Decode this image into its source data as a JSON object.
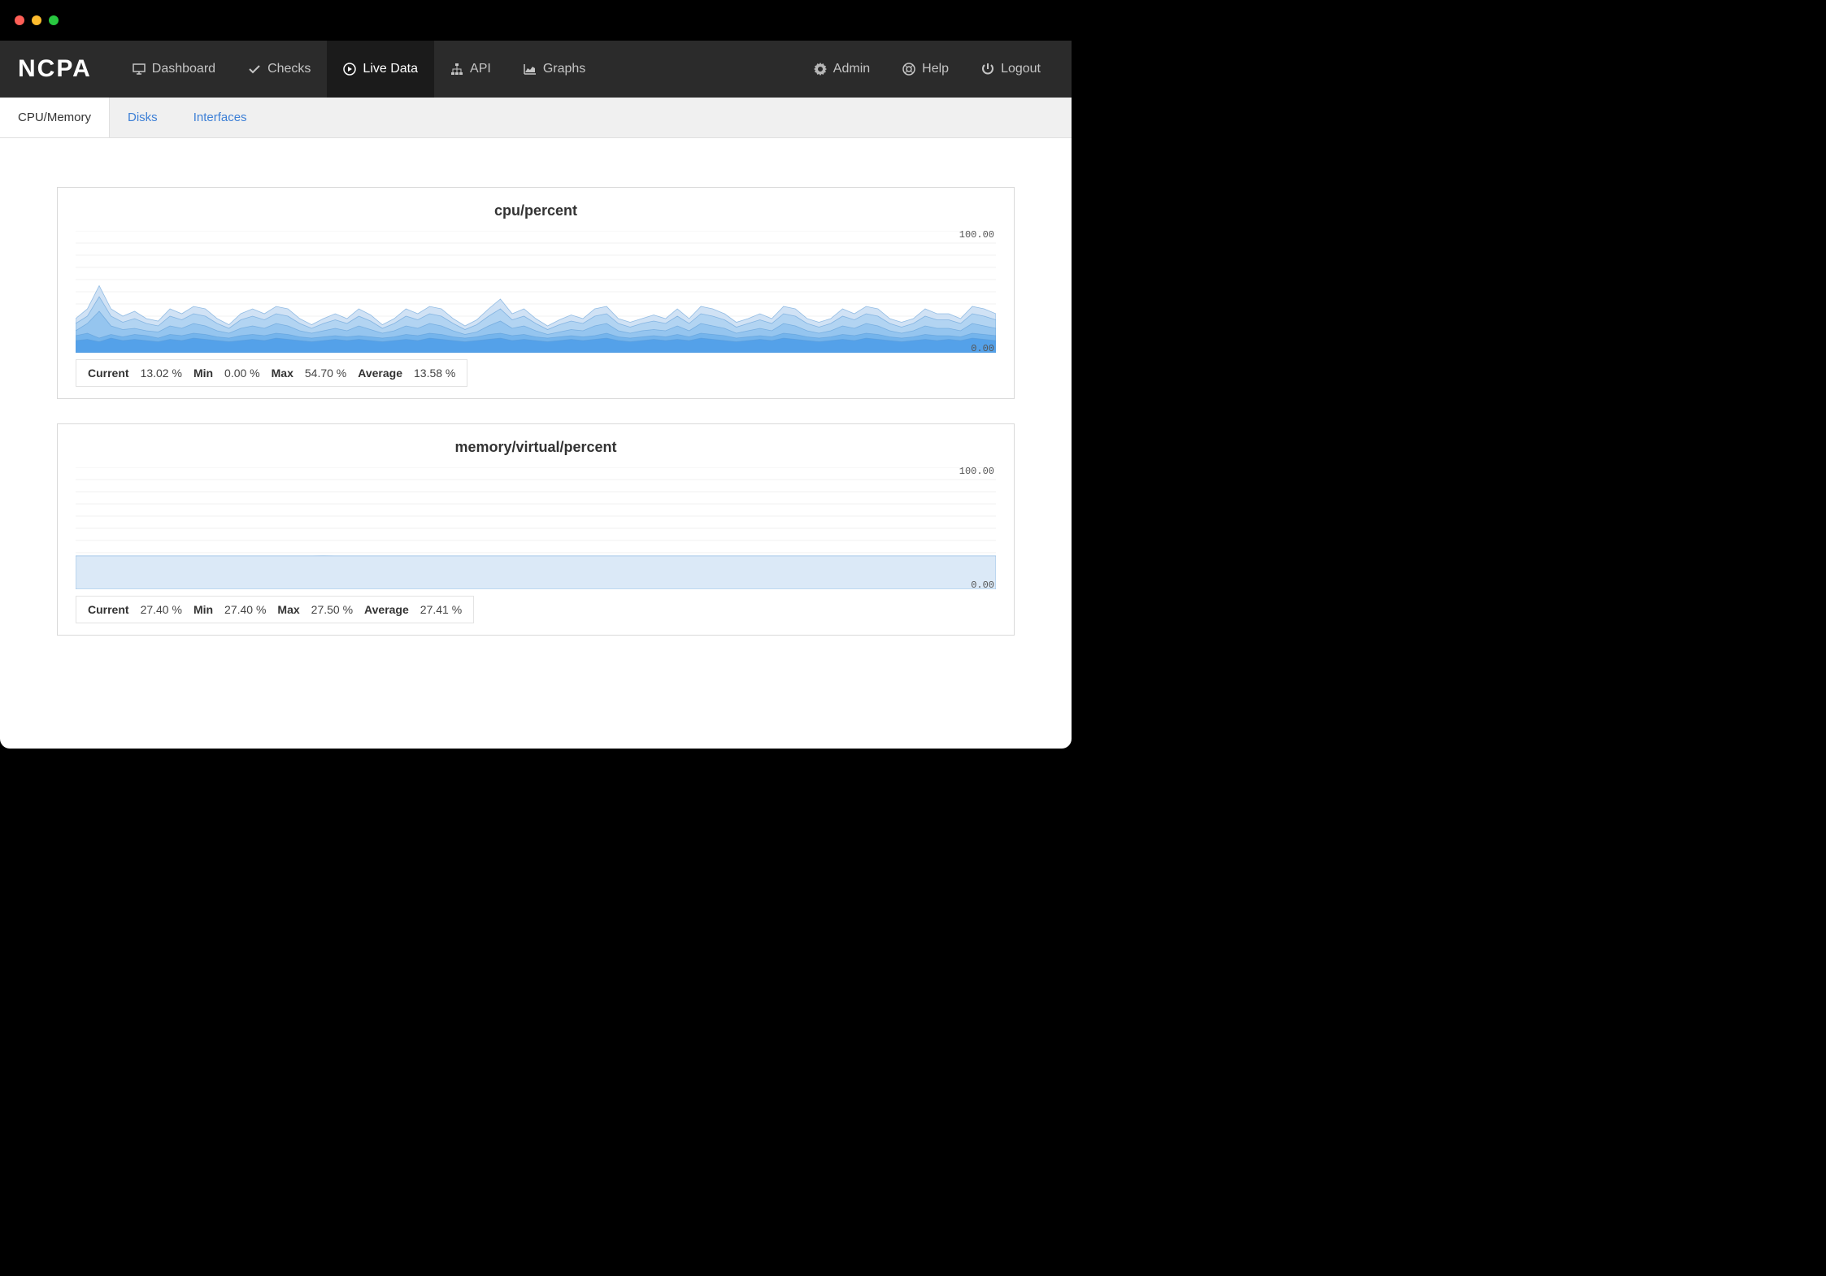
{
  "brand": "NCPA",
  "nav": {
    "items": [
      {
        "icon": "monitor",
        "label": "Dashboard",
        "active": false
      },
      {
        "icon": "check",
        "label": "Checks",
        "active": false
      },
      {
        "icon": "play",
        "label": "Live Data",
        "active": true
      },
      {
        "icon": "sitemap",
        "label": "API",
        "active": false
      },
      {
        "icon": "area-chart",
        "label": "Graphs",
        "active": false
      }
    ],
    "right_items": [
      {
        "icon": "gear",
        "label": "Admin"
      },
      {
        "icon": "life-ring",
        "label": "Help"
      },
      {
        "icon": "power",
        "label": "Logout"
      }
    ]
  },
  "tabs": [
    {
      "label": "CPU/Memory",
      "active": true
    },
    {
      "label": "Disks",
      "active": false
    },
    {
      "label": "Interfaces",
      "active": false
    }
  ],
  "charts": [
    {
      "id": "cpu",
      "type": "area",
      "title": "cpu/percent",
      "ylim": [
        0,
        100
      ],
      "ytick_top": "100.00",
      "ytick_bottom": "0.00",
      "background_color": "#ffffff",
      "grid_color": "#f0f0f0",
      "stroke_color": "#5b9bd5",
      "fill_colors": [
        "#c8ddf3",
        "#add1f1",
        "#8fc2ee",
        "#6eb0eb",
        "#4f9de9",
        "#3a8de4"
      ],
      "fill_opacity": 0.85,
      "series": [
        [
          10,
          11,
          9,
          12,
          10,
          11,
          10,
          9,
          11,
          10,
          12,
          11,
          10,
          9,
          10,
          11,
          10,
          12,
          11,
          10,
          9,
          10,
          11,
          10,
          11,
          10,
          9,
          10,
          11,
          10,
          12,
          11,
          10,
          9,
          10,
          11,
          12,
          10,
          11,
          10,
          9,
          10,
          11,
          10,
          11,
          12,
          10,
          9,
          10,
          11,
          10,
          11,
          10,
          12,
          11,
          10,
          9,
          10,
          11,
          10,
          12,
          11,
          10,
          9,
          10,
          11,
          10,
          12,
          11,
          10,
          9,
          10,
          11,
          10,
          11,
          10,
          12,
          11,
          10
        ],
        [
          14,
          16,
          12,
          15,
          13,
          15,
          14,
          12,
          15,
          14,
          16,
          15,
          13,
          12,
          14,
          15,
          14,
          16,
          15,
          13,
          12,
          13,
          14,
          13,
          14,
          13,
          12,
          13,
          15,
          14,
          16,
          15,
          13,
          12,
          13,
          15,
          16,
          14,
          15,
          13,
          12,
          13,
          14,
          13,
          14,
          16,
          13,
          12,
          13,
          14,
          13,
          15,
          13,
          16,
          15,
          14,
          12,
          13,
          14,
          13,
          16,
          15,
          13,
          12,
          13,
          15,
          14,
          16,
          15,
          13,
          12,
          13,
          15,
          14,
          14,
          13,
          16,
          15,
          14
        ],
        [
          18,
          24,
          34,
          22,
          19,
          20,
          18,
          17,
          22,
          20,
          24,
          22,
          18,
          16,
          20,
          22,
          20,
          24,
          22,
          18,
          16,
          18,
          20,
          18,
          22,
          19,
          16,
          18,
          22,
          20,
          24,
          22,
          18,
          15,
          17,
          22,
          26,
          20,
          22,
          18,
          15,
          17,
          19,
          18,
          22,
          24,
          18,
          16,
          18,
          19,
          18,
          22,
          18,
          24,
          22,
          20,
          16,
          18,
          20,
          18,
          24,
          22,
          18,
          16,
          18,
          22,
          20,
          24,
          22,
          18,
          16,
          18,
          22,
          20,
          20,
          18,
          24,
          22,
          20
        ],
        [
          24,
          30,
          46,
          30,
          25,
          28,
          24,
          22,
          30,
          27,
          32,
          30,
          24,
          20,
          27,
          30,
          27,
          32,
          30,
          24,
          20,
          24,
          27,
          24,
          30,
          26,
          20,
          24,
          30,
          27,
          32,
          30,
          24,
          19,
          23,
          30,
          36,
          27,
          30,
          24,
          19,
          23,
          26,
          24,
          30,
          32,
          24,
          21,
          24,
          26,
          24,
          30,
          24,
          32,
          30,
          27,
          21,
          24,
          27,
          24,
          32,
          30,
          24,
          21,
          24,
          30,
          27,
          32,
          30,
          24,
          21,
          24,
          30,
          27,
          27,
          24,
          32,
          30,
          27
        ],
        [
          28,
          36,
          55,
          36,
          30,
          34,
          28,
          26,
          36,
          32,
          38,
          36,
          28,
          23,
          32,
          36,
          32,
          38,
          36,
          28,
          23,
          28,
          32,
          28,
          36,
          31,
          23,
          28,
          36,
          32,
          38,
          36,
          28,
          22,
          27,
          36,
          44,
          32,
          36,
          28,
          22,
          27,
          31,
          28,
          36,
          38,
          28,
          25,
          28,
          31,
          28,
          36,
          28,
          38,
          36,
          32,
          25,
          28,
          32,
          28,
          38,
          36,
          28,
          25,
          28,
          36,
          32,
          38,
          36,
          28,
          25,
          28,
          36,
          32,
          32,
          28,
          38,
          36,
          32
        ]
      ],
      "stats": {
        "current": "13.02 %",
        "min": "0.00 %",
        "max": "54.70 %",
        "avg": "13.58 %"
      },
      "stats_labels": {
        "current": "Current",
        "min": "Min",
        "max": "Max",
        "avg": "Average"
      }
    },
    {
      "id": "mem",
      "type": "area",
      "title": "memory/virtual/percent",
      "ylim": [
        0,
        100
      ],
      "ytick_top": "100.00",
      "ytick_bottom": "0.00",
      "background_color": "#ffffff",
      "grid_color": "#f0f0f0",
      "stroke_color": "#5b9bd5",
      "fill_colors": [
        "#dbe9f7"
      ],
      "fill_opacity": 1.0,
      "series": [
        [
          27.4,
          27.4,
          27.4,
          27.4,
          27.4,
          27.4,
          27.4,
          27.4,
          27.4,
          27.4,
          27.4,
          27.4,
          27.4,
          27.4,
          27.4,
          27.4,
          27.4,
          27.4,
          27.4,
          27.4,
          27.4,
          27.5,
          27.4,
          27.4,
          27.4,
          27.4,
          27.4,
          27.4,
          27.4,
          27.4,
          27.4,
          27.4,
          27.4,
          27.4,
          27.4,
          27.4,
          27.4,
          27.4,
          27.4,
          27.4,
          27.4,
          27.4,
          27.4,
          27.4,
          27.4,
          27.4,
          27.4,
          27.4,
          27.4,
          27.4,
          27.4,
          27.4,
          27.4,
          27.4,
          27.4,
          27.4,
          27.4,
          27.4,
          27.4,
          27.4,
          27.4,
          27.4,
          27.4,
          27.4,
          27.4,
          27.4,
          27.4,
          27.4,
          27.4,
          27.4,
          27.4,
          27.4,
          27.4,
          27.4,
          27.4,
          27.4,
          27.4,
          27.4,
          27.4
        ]
      ],
      "stats": {
        "current": "27.40 %",
        "min": "27.40 %",
        "max": "27.50 %",
        "avg": "27.41 %"
      },
      "stats_labels": {
        "current": "Current",
        "min": "Min",
        "max": "Max",
        "avg": "Average"
      }
    }
  ]
}
